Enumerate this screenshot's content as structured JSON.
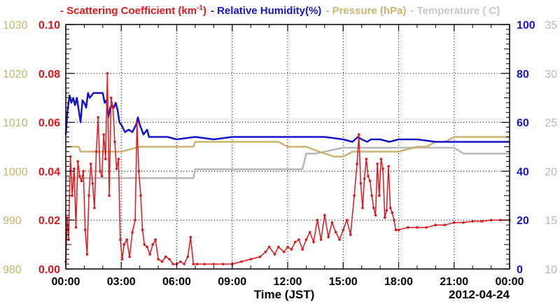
{
  "chart_data": {
    "type": "line",
    "x_axis": {
      "label": "Time (JST)",
      "date": "2012-04-24",
      "ticks": [
        "00:00",
        "03:00",
        "06:00",
        "09:00",
        "12:00",
        "15:00",
        "18:00",
        "21:00",
        "00:00"
      ],
      "range_hours": [
        0,
        24
      ],
      "grid": true
    },
    "axes": {
      "scattering": {
        "range": [
          0,
          0.1
        ],
        "ticks": [
          "0.00",
          "0.02",
          "0.04",
          "0.06",
          "0.08",
          "0.10"
        ],
        "color": "#e0161b",
        "side": "left"
      },
      "pressure": {
        "range": [
          980,
          1030
        ],
        "ticks": [
          "980",
          "990",
          "1000",
          "1010",
          "1020",
          "1030"
        ],
        "color": "#c8b46e",
        "side": "left"
      },
      "humidity": {
        "range": [
          0,
          100
        ],
        "ticks": [
          "0",
          "20",
          "40",
          "60",
          "80",
          "100"
        ],
        "color": "#1414cc",
        "side": "right"
      },
      "temperature": {
        "range": [
          10,
          35
        ],
        "ticks": [
          "10",
          "15",
          "20",
          "25",
          "30",
          "35"
        ],
        "color": "#b8b8b8",
        "side": "right"
      }
    },
    "legend": {
      "position": "top",
      "entries": [
        {
          "key": "scattering",
          "prefix": "- ",
          "text": "Scattering Coefficient (km",
          "sup": "-1",
          "suffix": ")",
          "color": "#e0161b"
        },
        {
          "key": "humidity",
          "prefix": "- ",
          "text": "Relative Humidity(%)",
          "sup": "",
          "suffix": "",
          "color": "#1414cc"
        },
        {
          "key": "pressure",
          "prefix": "- ",
          "text": "Pressure (hPa)",
          "sup": "",
          "suffix": "",
          "color": "#c8b46e"
        },
        {
          "key": "temperature",
          "prefix": "- ",
          "text": "Temperature (",
          "sup": "",
          "suffix": "C)",
          "color": "#c8c8c8"
        }
      ]
    },
    "series": [
      {
        "name": "Scattering Coefficient (km-1)",
        "axis": "scattering",
        "markers": true,
        "x": [
          0.0,
          0.08,
          0.15,
          0.25,
          0.35,
          0.45,
          0.55,
          0.65,
          0.75,
          0.85,
          0.95,
          1.05,
          1.15,
          1.25,
          1.35,
          1.45,
          1.55,
          1.65,
          1.75,
          1.85,
          1.95,
          2.05,
          2.15,
          2.25,
          2.35,
          2.45,
          2.55,
          2.65,
          2.75,
          2.85,
          2.95,
          3.05,
          3.15,
          3.3,
          3.45,
          3.6,
          3.75,
          3.85,
          3.95,
          4.05,
          4.15,
          4.25,
          4.4,
          4.55,
          4.7,
          4.85,
          5.0,
          5.2,
          5.4,
          5.6,
          5.8,
          6.0,
          6.2,
          6.4,
          6.6,
          6.75,
          6.9,
          7.1,
          7.5,
          8.0,
          8.5,
          9.0,
          9.5,
          10.0,
          10.5,
          10.8,
          11.0,
          11.3,
          11.5,
          11.8,
          12.0,
          12.2,
          12.4,
          12.6,
          12.8,
          13.0,
          13.2,
          13.4,
          13.6,
          13.8,
          14.0,
          14.2,
          14.4,
          14.6,
          14.8,
          15.0,
          15.2,
          15.4,
          15.6,
          15.75,
          15.85,
          15.95,
          16.05,
          16.15,
          16.25,
          16.35,
          16.45,
          16.55,
          16.65,
          16.75,
          16.85,
          16.95,
          17.05,
          17.15,
          17.25,
          17.35,
          17.45,
          17.55,
          17.65,
          17.75,
          17.85,
          18.0,
          18.5,
          19.0,
          19.5,
          20.0,
          20.5,
          21.0,
          21.5,
          22.0,
          22.5,
          23.0,
          23.5,
          24.0
        ],
        "y": [
          0.003,
          0.021,
          0.012,
          0.046,
          0.03,
          0.041,
          0.017,
          0.044,
          0.038,
          0.036,
          0.04,
          0.016,
          0.006,
          0.03,
          0.043,
          0.035,
          0.025,
          0.048,
          0.062,
          0.04,
          0.038,
          0.055,
          0.045,
          0.08,
          0.03,
          0.07,
          0.066,
          0.052,
          0.041,
          0.045,
          0.012,
          0.004,
          0.01,
          0.012,
          0.005,
          0.015,
          0.02,
          0.06,
          0.04,
          0.03,
          0.016,
          0.01,
          0.009,
          0.006,
          0.01,
          0.012,
          0.004,
          0.003,
          0.005,
          0.004,
          0.002,
          0.002,
          0.003,
          0.002,
          0.005,
          0.013,
          0.002,
          0.002,
          0.002,
          0.002,
          0.002,
          0.002,
          0.003,
          0.004,
          0.005,
          0.007,
          0.009,
          0.006,
          0.009,
          0.007,
          0.009,
          0.008,
          0.011,
          0.012,
          0.008,
          0.012,
          0.015,
          0.011,
          0.02,
          0.012,
          0.022,
          0.013,
          0.019,
          0.015,
          0.012,
          0.016,
          0.02,
          0.014,
          0.03,
          0.043,
          0.055,
          0.035,
          0.025,
          0.037,
          0.045,
          0.038,
          0.036,
          0.03,
          0.025,
          0.022,
          0.043,
          0.03,
          0.045,
          0.041,
          0.021,
          0.024,
          0.042,
          0.025,
          0.023,
          0.02,
          0.016,
          0.016,
          0.017,
          0.017,
          0.017,
          0.018,
          0.018,
          0.019,
          0.019,
          0.0195,
          0.0195,
          0.02,
          0.02,
          0.02
        ]
      },
      {
        "name": "Relative Humidity(%)",
        "axis": "humidity",
        "markers": false,
        "x": [
          0.0,
          0.1,
          0.2,
          0.3,
          0.4,
          0.5,
          0.6,
          0.7,
          0.8,
          0.9,
          1.0,
          1.1,
          1.2,
          1.3,
          1.5,
          1.7,
          1.9,
          2.0,
          2.1,
          2.2,
          2.3,
          2.4,
          2.5,
          2.6,
          2.7,
          2.8,
          2.9,
          3.0,
          3.2,
          3.4,
          3.6,
          3.8,
          3.9,
          4.0,
          4.2,
          4.4,
          4.5,
          5.0,
          5.5,
          6.0,
          7.0,
          8.0,
          9.0,
          10.0,
          11.0,
          12.0,
          13.0,
          14.0,
          15.0,
          15.5,
          15.8,
          16.0,
          16.3,
          16.5,
          17.0,
          17.5,
          18.0,
          19.0,
          20.0,
          21.0,
          22.0,
          23.0,
          24.0
        ],
        "y": [
          55,
          65,
          71,
          68,
          70,
          67,
          70,
          65,
          60,
          69,
          68,
          66,
          72,
          70,
          72,
          72,
          72,
          72,
          68,
          69,
          62,
          66,
          67,
          66,
          68,
          65,
          60,
          59,
          56,
          57,
          56,
          59,
          62,
          59,
          55,
          57,
          54,
          54,
          54,
          53,
          54,
          53,
          54,
          54,
          54,
          54,
          54,
          54,
          53,
          52,
          54,
          53,
          52,
          53,
          53,
          52,
          53,
          53,
          52,
          52,
          52,
          52,
          52
        ]
      },
      {
        "name": "Pressure (hPa)",
        "axis": "pressure",
        "markers": false,
        "x": [
          0.0,
          0.7,
          0.8,
          1.0,
          2.0,
          3.0,
          4.0,
          5.0,
          6.0,
          6.9,
          7.0,
          8.0,
          9.0,
          10.0,
          11.0,
          11.5,
          12.0,
          12.5,
          13.0,
          13.7,
          14.5,
          15.0,
          15.5,
          16.0,
          17.0,
          18.0,
          19.0,
          19.5,
          20.0,
          20.5,
          21.0,
          22.0,
          23.0,
          24.0
        ],
        "y": [
          1005,
          1005,
          1004,
          1004,
          1004,
          1004,
          1005,
          1005,
          1005,
          1005,
          1006,
          1006,
          1006,
          1006,
          1006,
          1006,
          1005,
          1005,
          1005,
          1004,
          1003,
          1003,
          1004,
          1004,
          1004,
          1004,
          1005,
          1005,
          1006,
          1006,
          1007,
          1007,
          1007,
          1007
        ]
      },
      {
        "name": "Temperature (C)",
        "axis": "temperature",
        "markers": false,
        "x": [
          0.0,
          1.0,
          2.0,
          3.0,
          4.0,
          5.0,
          6.0,
          6.9,
          7.0,
          8.0,
          9.0,
          10.0,
          11.0,
          12.0,
          12.8,
          12.9,
          13.0,
          13.5,
          14.0,
          15.0,
          16.0,
          17.0,
          18.0,
          19.0,
          20.0,
          21.0,
          21.5,
          22.0,
          23.0,
          24.0
        ],
        "y": [
          19.3,
          19.3,
          19.3,
          19.3,
          19.3,
          19.3,
          19.3,
          19.3,
          20.2,
          20.2,
          20.2,
          20.2,
          20.2,
          20.2,
          20.2,
          21.0,
          21.8,
          21.8,
          22.0,
          22.4,
          22.4,
          22.4,
          22.4,
          22.4,
          22.4,
          22.4,
          21.8,
          21.8,
          21.8,
          21.8
        ]
      }
    ]
  }
}
